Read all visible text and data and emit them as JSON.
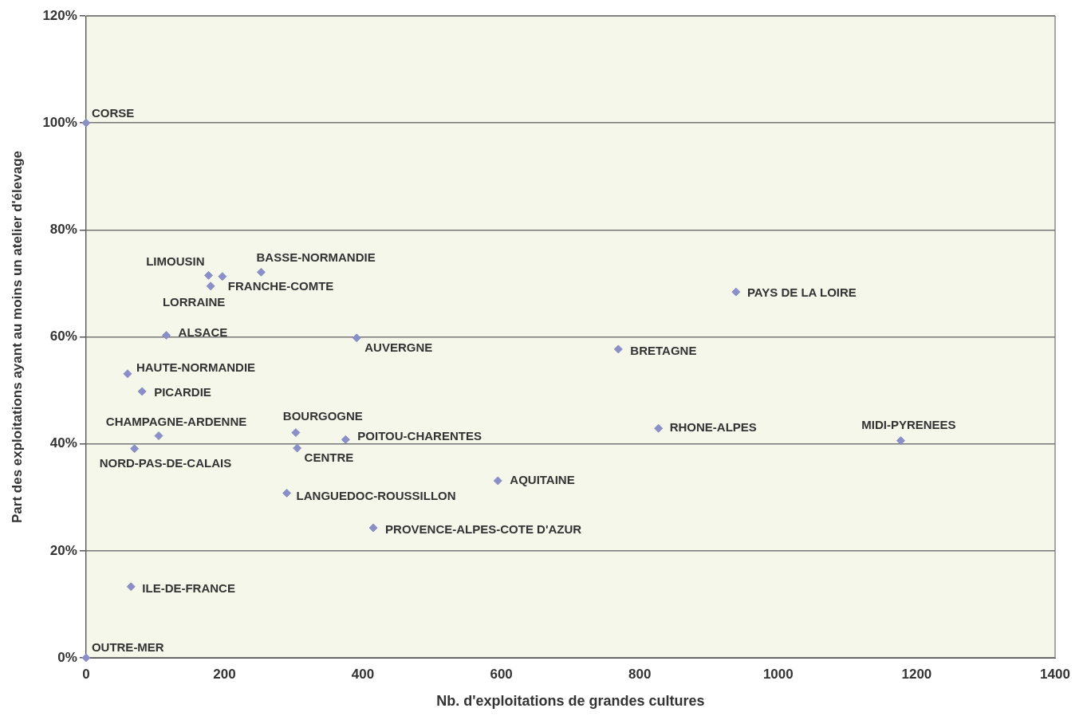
{
  "chart_data": {
    "type": "scatter",
    "xlabel": "Nb. d'exploitations de grandes cultures",
    "ylabel": "Part des exploitations ayant au moins un atelier d'élevage",
    "x": [
      0,
      0,
      177,
      197,
      180,
      253,
      116,
      391,
      939,
      769,
      60,
      81,
      105,
      70,
      303,
      305,
      375,
      827,
      1177,
      595,
      290,
      415,
      65
    ],
    "series": [
      {
        "color": "#8a8fc8",
        "values": [
          100,
          0,
          71.5,
          71.3,
          69.5,
          72.1,
          60.3,
          59.8,
          68.4,
          57.7,
          53.1,
          49.8,
          41.5,
          39.1,
          42.1,
          39.2,
          40.8,
          42.9,
          40.6,
          33.1,
          30.8,
          24.3,
          13.3
        ]
      }
    ],
    "annotations": [
      {
        "text": "CORSE",
        "x": 0,
        "y": 100
      },
      {
        "text": "OUTRE-MER",
        "x": 0,
        "y": 0
      },
      {
        "text": "LIMOUSIN",
        "x": 177,
        "y": 71.5
      },
      {
        "text": "FRANCHE-COMTE",
        "x": 197,
        "y": 71.3
      },
      {
        "text": "LORRAINE",
        "x": 180,
        "y": 69.5
      },
      {
        "text": "BASSE-NORMANDIE",
        "x": 253,
        "y": 72.1
      },
      {
        "text": "ALSACE",
        "x": 116,
        "y": 60.3
      },
      {
        "text": "AUVERGNE",
        "x": 391,
        "y": 59.8
      },
      {
        "text": "PAYS DE LA LOIRE",
        "x": 939,
        "y": 68.4
      },
      {
        "text": "BRETAGNE",
        "x": 769,
        "y": 57.7
      },
      {
        "text": "HAUTE-NORMANDIE",
        "x": 60,
        "y": 53.1
      },
      {
        "text": "PICARDIE",
        "x": 81,
        "y": 49.8
      },
      {
        "text": "CHAMPAGNE-ARDENNE",
        "x": 105,
        "y": 41.5
      },
      {
        "text": "NORD-PAS-DE-CALAIS",
        "x": 70,
        "y": 39.1
      },
      {
        "text": "BOURGOGNE",
        "x": 303,
        "y": 42.1
      },
      {
        "text": "CENTRE",
        "x": 305,
        "y": 39.2
      },
      {
        "text": "POITOU-CHARENTES",
        "x": 375,
        "y": 40.8
      },
      {
        "text": "RHONE-ALPES",
        "x": 827,
        "y": 42.9
      },
      {
        "text": "MIDI-PYRENEES",
        "x": 1177,
        "y": 40.6
      },
      {
        "text": "AQUITAINE",
        "x": 595,
        "y": 33.1
      },
      {
        "text": "LANGUEDOC-ROUSSILLON",
        "x": 290,
        "y": 30.8
      },
      {
        "text": "PROVENCE-ALPES-COTE D'AZUR",
        "x": 415,
        "y": 24.3
      },
      {
        "text": "ILE-DE-FRANCE",
        "x": 65,
        "y": 13.3
      }
    ],
    "xlim": [
      0,
      1400
    ],
    "xticks": [
      0,
      200,
      400,
      600,
      800,
      1000,
      1200,
      1400
    ],
    "ylim": [
      0,
      120
    ],
    "yticks": [
      {
        "value": 0,
        "label": "0%"
      },
      {
        "value": 20,
        "label": "20%"
      },
      {
        "value": 40,
        "label": "40%"
      },
      {
        "value": 60,
        "label": "60%"
      },
      {
        "value": 80,
        "label": "80%"
      },
      {
        "value": 100,
        "label": "100%"
      },
      {
        "value": 120,
        "label": "120%"
      }
    ],
    "grid": "y",
    "legend": false,
    "marker": "diamond"
  }
}
